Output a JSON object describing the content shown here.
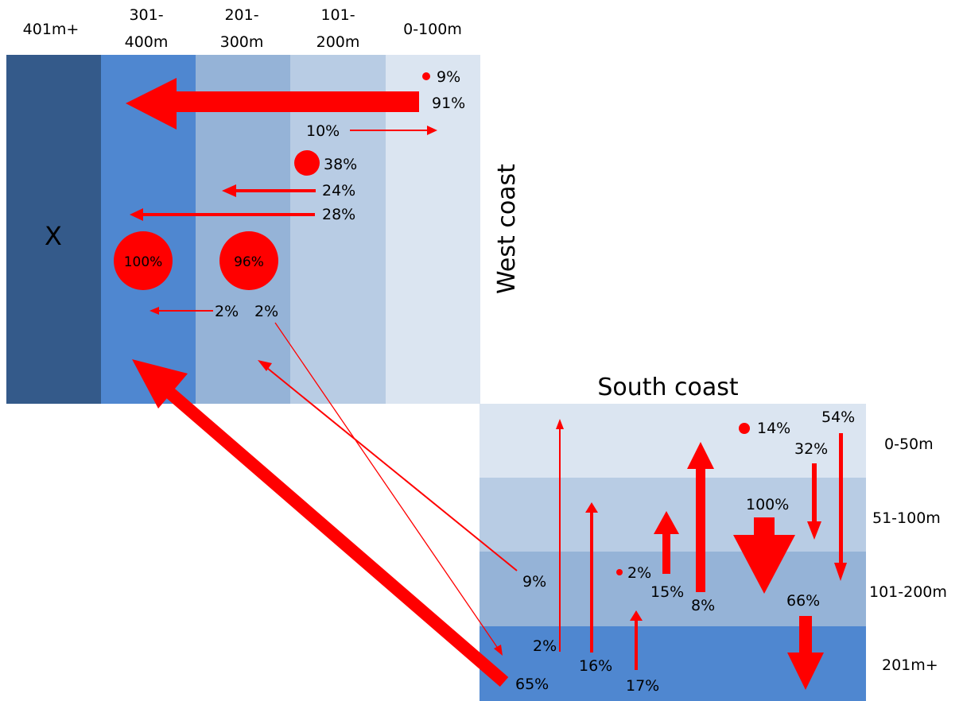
{
  "colors": {
    "band_401": "#345a8a",
    "band_301": "#4f87d0",
    "band_201": "#95b3d7",
    "band_101": "#b8cce4",
    "band_0": "#dbe5f1",
    "arrow": "#ff0000"
  },
  "west": {
    "title": "West coast",
    "x_label": "X",
    "headers": [
      {
        "line1": "401m+",
        "line2": ""
      },
      {
        "line1": "301-",
        "line2": "400m"
      },
      {
        "line1": "201-",
        "line2": "300m"
      },
      {
        "line1": "101-",
        "line2": "200m"
      },
      {
        "line1": "0-100m",
        "line2": ""
      }
    ],
    "pct_9": "9%",
    "pct_91": "91%",
    "pct_10": "10%",
    "pct_38": "38%",
    "pct_24": "24%",
    "pct_28": "28%",
    "pct_100": "100%",
    "pct_96": "96%",
    "pct_2a": "2%",
    "pct_2b": "2%"
  },
  "south": {
    "title": "South coast",
    "bands": [
      "0-50m",
      "51-100m",
      "101-200m",
      "201m+"
    ],
    "pct_14": "14%",
    "pct_54": "54%",
    "pct_32": "32%",
    "pct_100": "100%",
    "pct_2": "2%",
    "pct_15": "15%",
    "pct_8": "8%",
    "pct_66": "66%",
    "pct_9": "9%",
    "pct_2b": "2%",
    "pct_16": "16%",
    "pct_17": "17%",
    "pct_65": "65%"
  }
}
